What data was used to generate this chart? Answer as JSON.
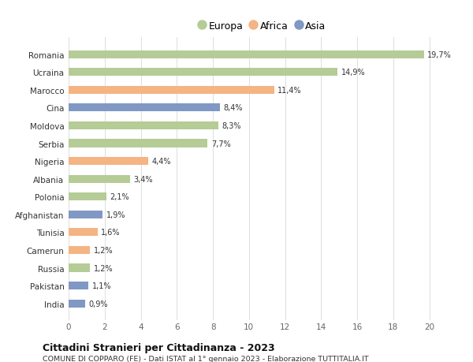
{
  "categories": [
    "Romania",
    "Ucraina",
    "Marocco",
    "Cina",
    "Moldova",
    "Serbia",
    "Nigeria",
    "Albania",
    "Polonia",
    "Afghanistan",
    "Tunisia",
    "Camerun",
    "Russia",
    "Pakistan",
    "India"
  ],
  "values": [
    19.7,
    14.9,
    11.4,
    8.4,
    8.3,
    7.7,
    4.4,
    3.4,
    2.1,
    1.9,
    1.6,
    1.2,
    1.2,
    1.1,
    0.9
  ],
  "labels": [
    "19,7%",
    "14,9%",
    "11,4%",
    "8,4%",
    "8,3%",
    "7,7%",
    "4,4%",
    "3,4%",
    "2,1%",
    "1,9%",
    "1,6%",
    "1,2%",
    "1,2%",
    "1,1%",
    "0,9%"
  ],
  "colors": [
    "#b5cc96",
    "#b5cc96",
    "#f4b483",
    "#8098c4",
    "#b5cc96",
    "#b5cc96",
    "#f4b483",
    "#b5cc96",
    "#b5cc96",
    "#8098c4",
    "#f4b483",
    "#f4b483",
    "#b5cc96",
    "#8098c4",
    "#8098c4"
  ],
  "legend_labels": [
    "Europa",
    "Africa",
    "Asia"
  ],
  "legend_colors": [
    "#b5cc96",
    "#f4b483",
    "#8098c4"
  ],
  "title": "Cittadini Stranieri per Cittadinanza - 2023",
  "subtitle": "COMUNE DI COPPARO (FE) - Dati ISTAT al 1° gennaio 2023 - Elaborazione TUTTITALIA.IT",
  "xlim": [
    0,
    21.5
  ],
  "xticks": [
    0,
    2,
    4,
    6,
    8,
    10,
    12,
    14,
    16,
    18,
    20
  ],
  "background_color": "#ffffff",
  "grid_color": "#d8d8d8",
  "bar_height": 0.45
}
